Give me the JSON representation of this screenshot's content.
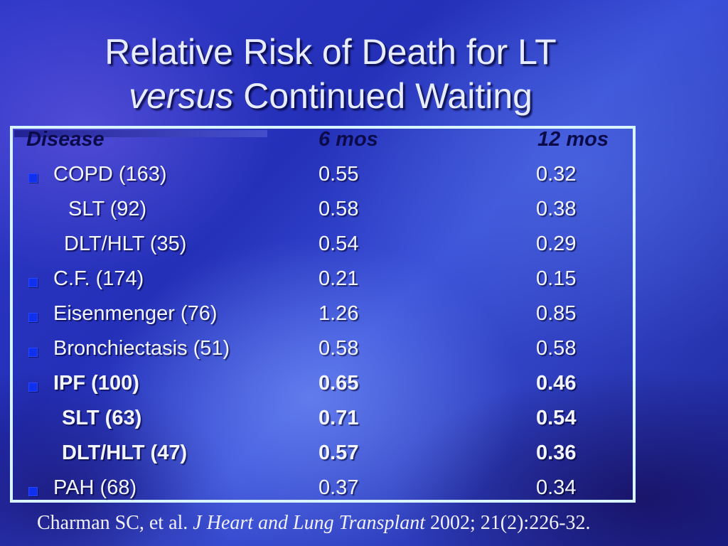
{
  "slide": {
    "title_line1": "Relative Risk of Death for LT",
    "title_line2_italic": "versus",
    "title_line2_rest": " Continued Waiting"
  },
  "table": {
    "headers": [
      "Disease",
      "6 mos",
      "12 mos"
    ],
    "rows": [
      {
        "label": "COPD (163)",
        "m6": "0.55",
        "m12": "0.32"
      },
      {
        "label": "SLT (92)",
        "m6": "0.58",
        "m12": "0.38"
      },
      {
        "label": "DLT/HLT (35)",
        "m6": "0.54",
        "m12": "0.29"
      },
      {
        "label": "C.F. (174)",
        "m6": "0.21",
        "m12": "0.15"
      },
      {
        "label": "Eisenmenger (76)",
        "m6": "1.26",
        "m12": "0.85"
      },
      {
        "label": "Bronchiectasis (51)",
        "m6": "0.58",
        "m12": "0.58"
      },
      {
        "label": "IPF (100)",
        "m6": "0.65",
        "m12": "0.46"
      },
      {
        "label": "SLT (63)",
        "m6": "0.71",
        "m12": "0.54"
      },
      {
        "label": "DLT/HLT (47)",
        "m6": "0.57",
        "m12": "0.36"
      },
      {
        "label": "PAH (68)",
        "m6": "0.37",
        "m12": "0.34"
      }
    ]
  },
  "citation": {
    "authors": "Charman SC, et al. ",
    "journal": "J Heart and Lung Transplant",
    "details": " 2002; 21(2):226-32."
  },
  "colors": {
    "background": "#2430b8",
    "text": "#f2f4ff",
    "header_text": "#0b0b4a",
    "table_border": "#d8f4ff",
    "bullet": "#1030f0"
  }
}
